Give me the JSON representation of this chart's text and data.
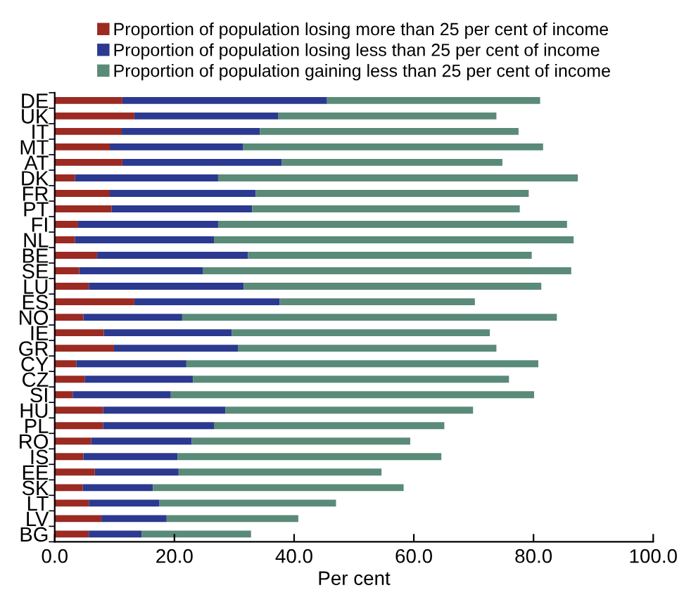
{
  "chart_data": {
    "type": "bar",
    "orientation": "horizontal",
    "stacked": true,
    "xlabel": "Per cent",
    "legend": "top",
    "grid": false,
    "categories": [
      "DE",
      "UK",
      "IT",
      "MT",
      "AT",
      "DK",
      "FR",
      "PT",
      "FI",
      "NL",
      "BE",
      "SE",
      "LU",
      "ES",
      "NO",
      "IE",
      "GR",
      "CY",
      "CZ",
      "SI",
      "HU",
      "PL",
      "RO",
      "IS",
      "EE",
      "SK",
      "LT",
      "LV",
      "BG"
    ],
    "xlim": [
      0,
      100
    ],
    "xticks": [
      {
        "value": 0,
        "label": "0.0"
      },
      {
        "value": 20,
        "label": "20.0"
      },
      {
        "value": 40,
        "label": "40.0"
      },
      {
        "value": 60,
        "label": "60.0"
      },
      {
        "value": 80,
        "label": "80.0"
      },
      {
        "value": 100,
        "label": "100.0"
      }
    ],
    "series": [
      {
        "name": "Proportion of population losing more than 25 per cent of income",
        "color": "#9b2a22",
        "values": [
          11.3,
          13.3,
          11.2,
          9.2,
          11.3,
          3.4,
          9.2,
          9.5,
          3.9,
          3.4,
          7.1,
          4.1,
          5.7,
          13.3,
          4.8,
          8.2,
          9.9,
          3.6,
          5.0,
          3.0,
          8.1,
          8.1,
          6.1,
          4.8,
          6.7,
          4.7,
          5.7,
          7.8,
          5.7
        ]
      },
      {
        "name": "Proportion of population losing less than 25 per cent of income",
        "color": "#2b3990",
        "values": [
          34.2,
          24.0,
          23.1,
          22.3,
          26.6,
          23.9,
          24.4,
          23.5,
          23.4,
          23.2,
          25.2,
          20.7,
          25.9,
          24.3,
          16.5,
          21.4,
          20.7,
          18.4,
          18.1,
          16.4,
          20.4,
          18.5,
          16.8,
          15.7,
          14.0,
          11.7,
          11.8,
          10.9,
          8.8
        ]
      },
      {
        "name": "Proportion of population gaining less than 25 per cent of income",
        "color": "#5a8a78",
        "values": [
          35.6,
          36.5,
          43.2,
          50.1,
          36.9,
          60.1,
          45.6,
          44.7,
          58.3,
          60.1,
          47.4,
          61.5,
          49.7,
          32.6,
          62.6,
          43.1,
          43.2,
          58.8,
          52.8,
          60.7,
          41.4,
          38.5,
          36.5,
          44.1,
          33.9,
          41.9,
          29.5,
          22.0,
          18.3
        ]
      }
    ]
  }
}
